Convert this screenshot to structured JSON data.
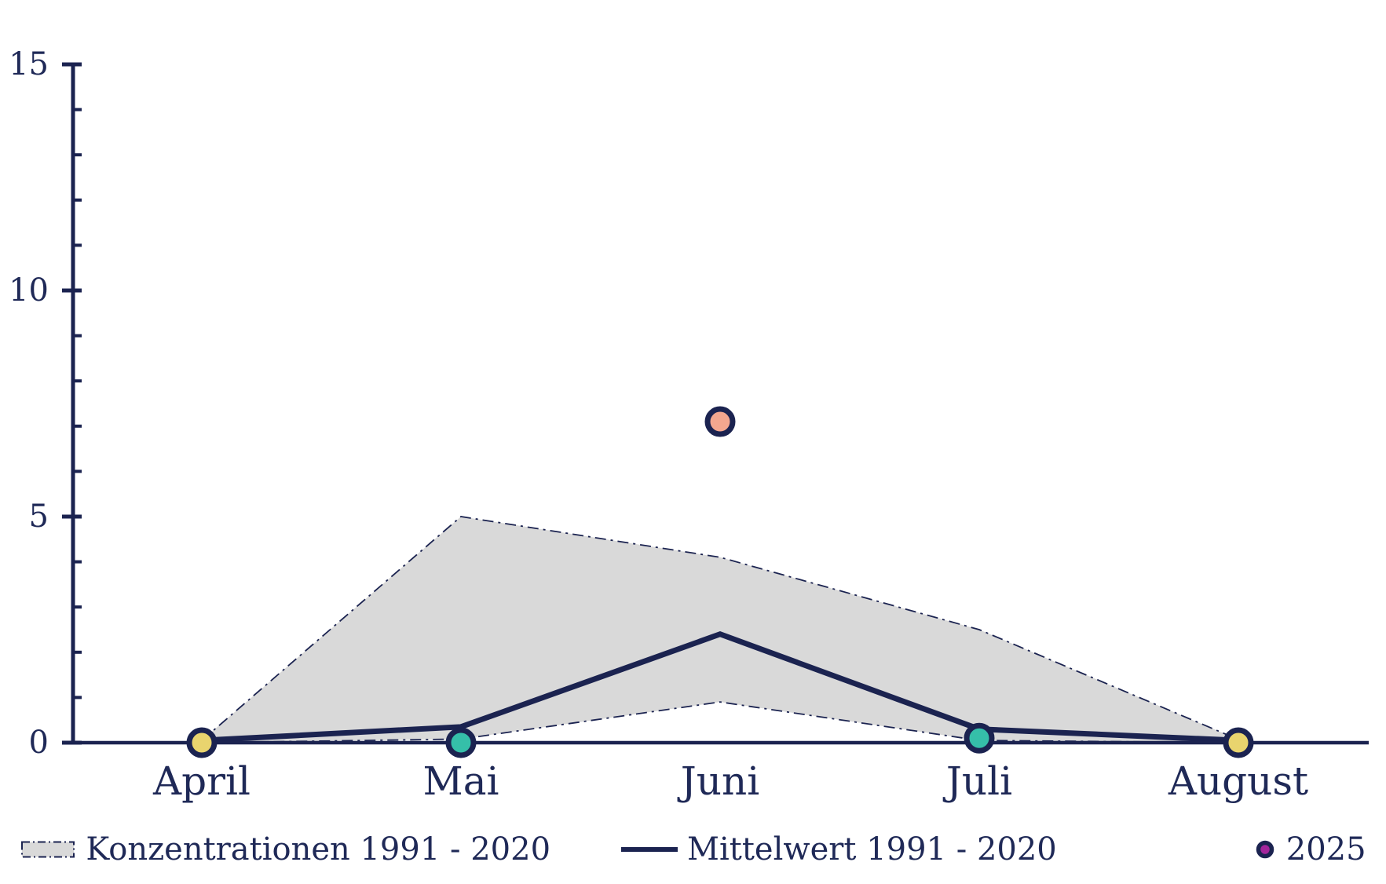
{
  "colors": {
    "navy_line": "#1b2350",
    "text": "#1f2957",
    "band_fill": "#d9d9d9",
    "point_yellow": "#e9d46e",
    "point_teal": "#35bfa9",
    "point_salmon": "#f4a78f",
    "legend_dot_purple": "#a3259b"
  },
  "chart_data": {
    "type": "combo",
    "subtype": "range-band + mean line + scatter points",
    "categories": [
      "April",
      "Mai",
      "Juni",
      "Juli",
      "August"
    ],
    "y_axis": {
      "min": 0,
      "max": 15,
      "major_ticks": [
        0,
        5,
        10,
        15
      ],
      "minor_tick_step": 1,
      "grid": false
    },
    "series": [
      {
        "name": "Konzentrationen 1991 - 2020",
        "type": "band",
        "upper": [
          0.05,
          5.0,
          4.1,
          2.5,
          0.07
        ],
        "lower": [
          0.0,
          0.08,
          0.9,
          0.05,
          0.0
        ],
        "fill": "#d9d9d9",
        "edge_style": "dash-dot"
      },
      {
        "name": "Mittelwert 1991 - 2020",
        "type": "line",
        "values": [
          0.05,
          0.35,
          2.4,
          0.3,
          0.05
        ]
      },
      {
        "name": "2025",
        "type": "scatter",
        "values": [
          0.0,
          0.0,
          7.1,
          0.1,
          0.0
        ],
        "point_colors": [
          "#e9d46e",
          "#35bfa9",
          "#f4a78f",
          "#35bfa9",
          "#e9d46e"
        ]
      }
    ],
    "legend_position": "bottom"
  },
  "legend": {
    "items": [
      {
        "label": "Konzentrationen 1991 - 2020",
        "swatch": "gray-dash-dot-patch"
      },
      {
        "label": "Mittelwert 1991 - 2020",
        "swatch": "navy-line"
      },
      {
        "label": "2025",
        "swatch": "purple-dot"
      }
    ]
  }
}
